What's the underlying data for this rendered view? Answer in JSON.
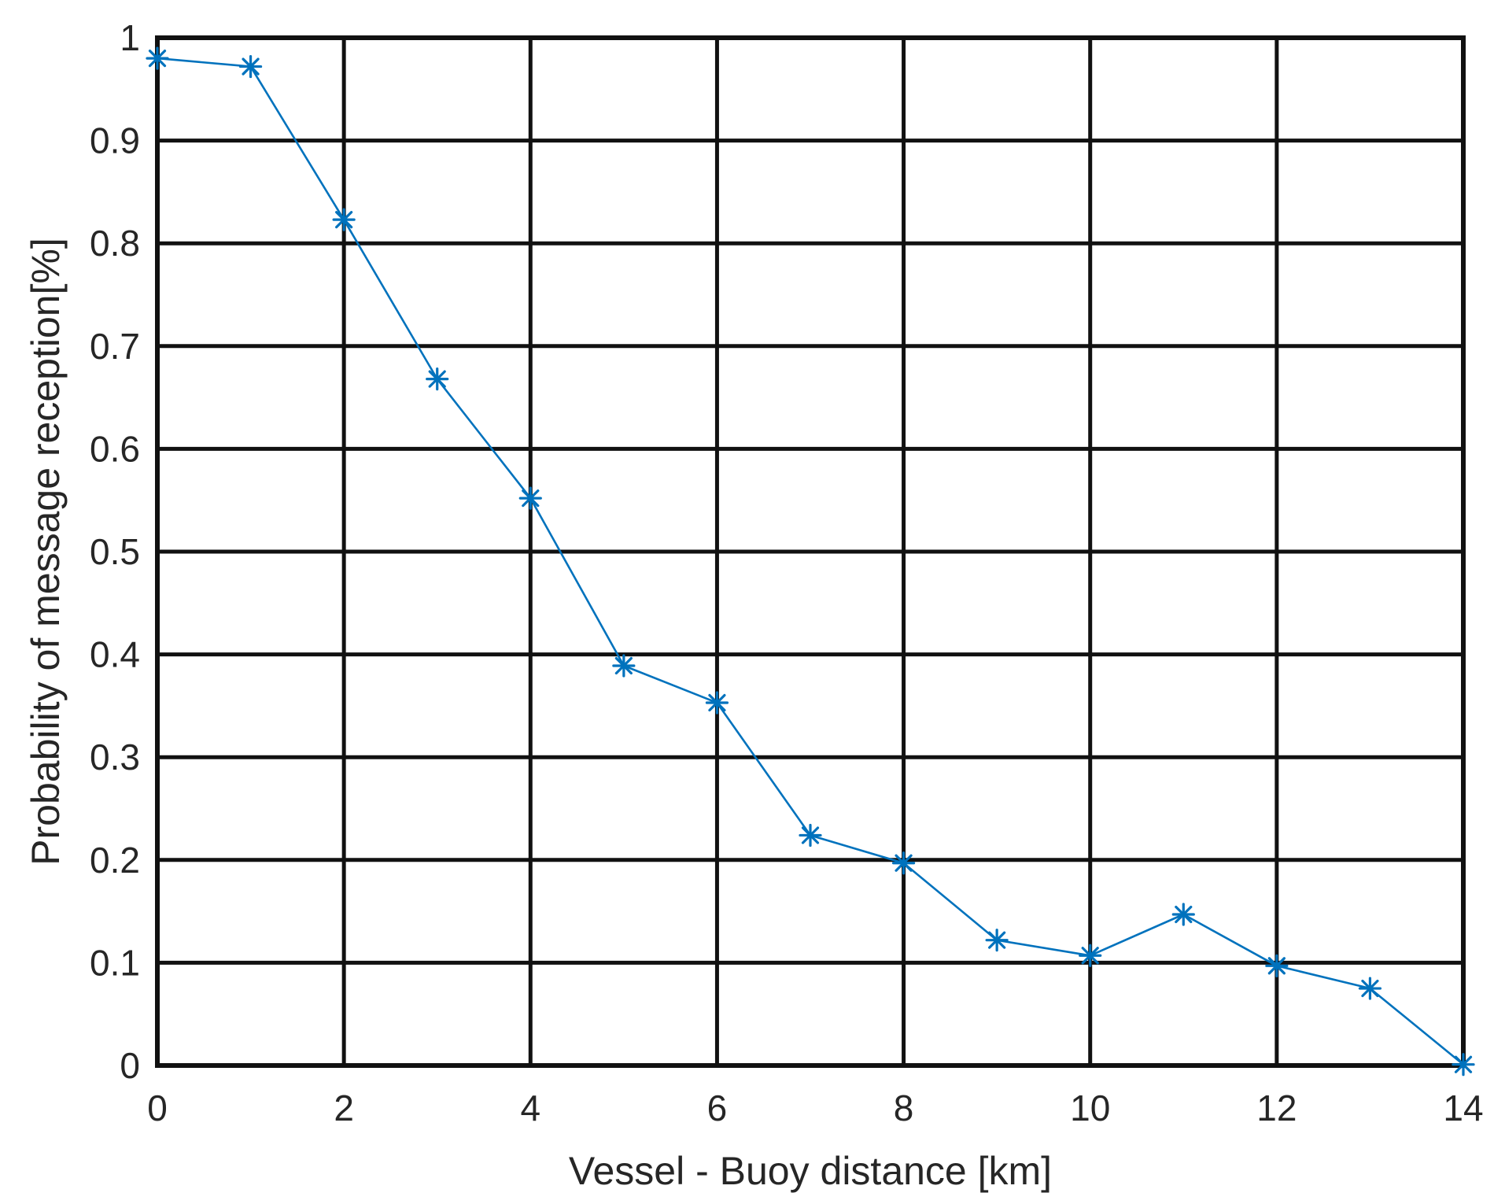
{
  "chart_data": {
    "type": "line",
    "title": "",
    "xlabel": "Vessel - Buoy distance [km]",
    "ylabel": "Probability of message reception[%]",
    "xlim": [
      0,
      14
    ],
    "ylim": [
      0,
      1
    ],
    "x_ticks": [
      0,
      2,
      4,
      6,
      8,
      10,
      12,
      14
    ],
    "x_tick_labels": [
      "0",
      "2",
      "4",
      "6",
      "8",
      "10",
      "12",
      "14"
    ],
    "y_ticks": [
      0,
      0.1,
      0.2,
      0.3,
      0.4,
      0.5,
      0.6,
      0.7,
      0.8,
      0.9,
      1
    ],
    "y_tick_labels": [
      "0",
      "0.1",
      "0.2",
      "0.3",
      "0.4",
      "0.5",
      "0.6",
      "0.7",
      "0.8",
      "0.9",
      "1"
    ],
    "grid": true,
    "grid_color": "#111111",
    "series": [
      {
        "color": "#0072BD",
        "marker": "asterisk",
        "x": [
          0,
          1,
          2,
          3,
          4,
          5,
          6,
          7,
          8,
          9,
          10,
          11,
          12,
          13,
          14
        ],
        "y": [
          0.98,
          0.972,
          0.823,
          0.668,
          0.552,
          0.389,
          0.353,
          0.224,
          0.197,
          0.122,
          0.107,
          0.147,
          0.097,
          0.075,
          0.001
        ]
      }
    ]
  }
}
